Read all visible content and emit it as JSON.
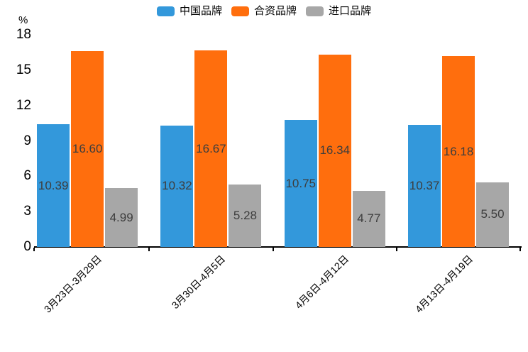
{
  "chart_data": {
    "type": "bar",
    "title": "",
    "ylabel": "%",
    "xlabel": "",
    "ylim": [
      0,
      18
    ],
    "yticks": [
      0,
      3,
      6,
      9,
      12,
      15,
      18
    ],
    "grid": false,
    "legend_position": "top",
    "categories": [
      "3月23日-3月29日",
      "3月30日-4月5日",
      "4月6日-4月12日",
      "4月13日-4月19日"
    ],
    "series": [
      {
        "name": "中国品牌",
        "color": "#3398DB",
        "values": [
          10.39,
          10.32,
          10.75,
          10.37
        ]
      },
      {
        "name": "合资品牌",
        "color": "#FF6E0D",
        "values": [
          16.6,
          16.67,
          16.34,
          16.18
        ]
      },
      {
        "name": "进口品牌",
        "color": "#A7A7A7",
        "values": [
          4.99,
          5.28,
          4.77,
          5.5
        ]
      }
    ]
  },
  "colors": {
    "background": "#FFFFFF",
    "axis": "#000000",
    "value_label": "#3D3D3D"
  }
}
